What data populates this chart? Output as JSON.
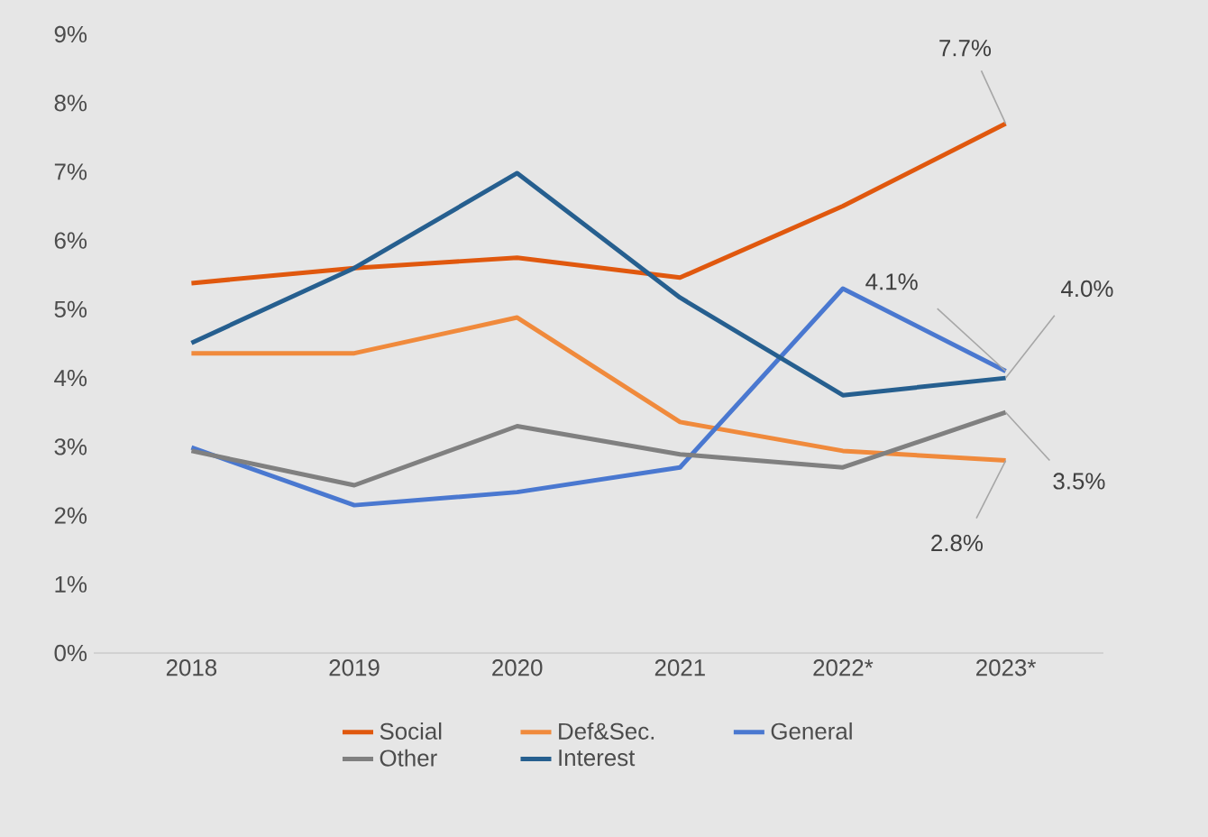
{
  "chart_data": {
    "type": "line",
    "categories": [
      "2018",
      "2019",
      "2020",
      "2021",
      "2022*",
      "2023*"
    ],
    "series": [
      {
        "name": "Social",
        "color": "#e0580e",
        "values": [
          5.38,
          5.6,
          5.75,
          5.46,
          6.5,
          7.7
        ],
        "value_labels": [
          null,
          null,
          null,
          null,
          null,
          "7.7%"
        ]
      },
      {
        "name": "Def&Sec.",
        "color": "#f08a3c",
        "values": [
          4.36,
          4.36,
          4.88,
          3.36,
          2.94,
          2.8
        ],
        "value_labels": [
          null,
          null,
          null,
          null,
          null,
          "2.8%"
        ]
      },
      {
        "name": "General",
        "color": "#4a78d0",
        "values": [
          2.99,
          2.15,
          2.34,
          2.7,
          5.3,
          4.1
        ],
        "value_labels": [
          null,
          null,
          null,
          null,
          null,
          "4.1%"
        ]
      },
      {
        "name": "Other",
        "color": "#808080",
        "values": [
          2.94,
          2.44,
          3.3,
          2.89,
          2.7,
          3.5
        ],
        "value_labels": [
          null,
          null,
          null,
          null,
          null,
          "3.5%"
        ]
      },
      {
        "name": "Interest",
        "color": "#265f8f",
        "values": [
          4.51,
          5.6,
          6.98,
          5.17,
          3.75,
          4.0
        ],
        "value_labels": [
          null,
          null,
          null,
          null,
          null,
          "4.0%"
        ]
      }
    ],
    "ylim": [
      0,
      9
    ],
    "yticks": [
      {
        "value": 0,
        "label": "0%"
      },
      {
        "value": 1,
        "label": "1%"
      },
      {
        "value": 2,
        "label": "2%"
      },
      {
        "value": 3,
        "label": "3%"
      },
      {
        "value": 4,
        "label": "4%"
      },
      {
        "value": 5,
        "label": "5%"
      },
      {
        "value": 6,
        "label": "6%"
      },
      {
        "value": 7,
        "label": "7%"
      },
      {
        "value": 8,
        "label": "8%"
      },
      {
        "value": 9,
        "label": "9%"
      }
    ],
    "grid": false,
    "legend": "bottom",
    "marker": "none",
    "line_style": "solid"
  }
}
